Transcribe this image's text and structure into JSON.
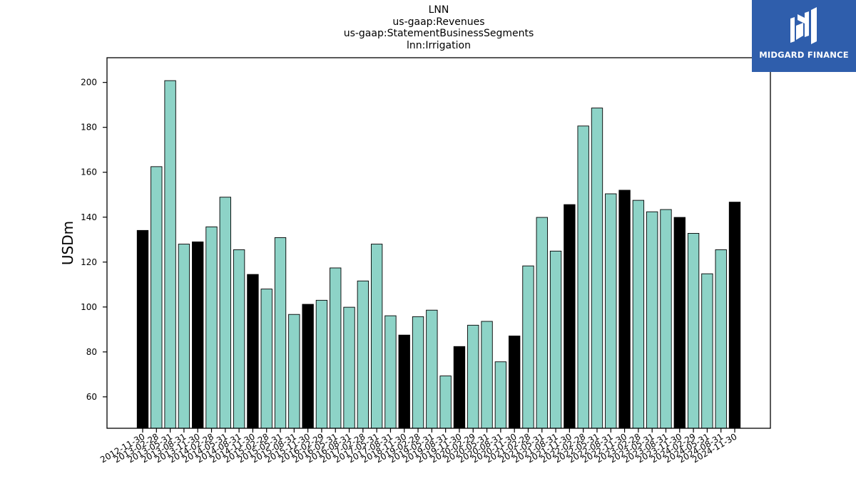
{
  "chart_data": {
    "type": "bar",
    "title_lines": [
      "LNN",
      "us-gaap:Revenues",
      "us-gaap:StatementBusinessSegments",
      "lnn:Irrigation"
    ],
    "xlabel": "",
    "ylabel": "USDm",
    "ylim": [
      46,
      211
    ],
    "yticks": [
      60,
      80,
      100,
      120,
      140,
      160,
      180,
      200
    ],
    "grid": false,
    "colors": {
      "quarter": "#8dd3c7",
      "fiscal_year_end": "#000000",
      "edge": "#000000"
    },
    "categories": [
      "2012-11-30",
      "2013-02-28",
      "2013-05-31",
      "2013-08-31",
      "2013-11-30",
      "2014-02-28",
      "2014-05-31",
      "2014-08-31",
      "2014-11-30",
      "2015-02-28",
      "2015-05-31",
      "2015-08-31",
      "2015-11-30",
      "2016-02-29",
      "2016-05-31",
      "2016-08-31",
      "2017-02-28",
      "2017-05-31",
      "2017-08-31",
      "2018-11-30",
      "2019-02-28",
      "2019-05-31",
      "2019-08-31",
      "2019-11-30",
      "2020-02-29",
      "2020-05-31",
      "2020-08-31",
      "2020-11-30",
      "2021-02-28",
      "2021-05-31",
      "2021-08-31",
      "2021-11-30",
      "2022-02-28",
      "2022-05-31",
      "2022-08-31",
      "2022-11-30",
      "2023-02-28",
      "2023-05-31",
      "2023-08-31",
      "2023-11-30",
      "2024-02-29",
      "2024-05-31",
      "2024-08-31",
      "2024-11-30"
    ],
    "values": [
      134.1,
      162.5,
      200.8,
      128.0,
      129.0,
      135.7,
      148.9,
      125.5,
      114.5,
      108.0,
      130.9,
      96.7,
      101.2,
      103.0,
      117.4,
      99.9,
      111.6,
      128.0,
      96.1,
      87.5,
      95.7,
      98.6,
      69.3,
      82.4,
      91.9,
      93.6,
      75.6,
      87.1,
      118.3,
      139.9,
      124.9,
      145.6,
      180.6,
      188.6,
      150.4,
      152.0,
      147.5,
      142.4,
      143.4,
      139.9,
      132.8,
      114.8,
      125.5,
      146.7
    ],
    "fiscal_year_end": [
      true,
      false,
      false,
      false,
      true,
      false,
      false,
      false,
      true,
      false,
      false,
      false,
      true,
      false,
      false,
      false,
      false,
      false,
      false,
      true,
      false,
      false,
      false,
      true,
      false,
      false,
      false,
      true,
      false,
      false,
      false,
      true,
      false,
      false,
      false,
      true,
      false,
      false,
      false,
      true,
      false,
      false,
      false,
      true
    ]
  },
  "logo": {
    "text": "MIDGARD FINANCE"
  }
}
